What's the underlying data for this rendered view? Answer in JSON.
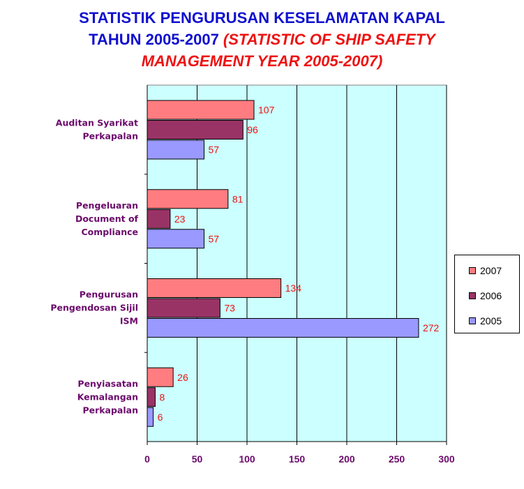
{
  "title": {
    "line1": "STATISTIK PENGURUSAN KESELAMATAN KAPAL",
    "line2_ms": "TAHUN 2005-2007 ",
    "line2_en": "(STATISTIC OF SHIP SAFETY",
    "line3_en": "MANAGEMENT YEAR 2005-2007)"
  },
  "colors": {
    "plot_background": "#ccffff",
    "category_label": "#6b0a6b",
    "data_label": "#ee1111",
    "title_ms": "#1010d0",
    "title_en": "#ee1111"
  },
  "chart_data": {
    "type": "bar",
    "orientation": "horizontal",
    "categories": [
      [
        "Auditan Syarikat",
        "Perkapalan"
      ],
      [
        "Pengeluaran",
        "Document of",
        "Compliance"
      ],
      [
        "Pengurusan",
        "Pengendosan Sijil",
        "ISM"
      ],
      [
        "Penyiasatan",
        "Kemalangan",
        "Perkapalan"
      ]
    ],
    "series": [
      {
        "name": "2007",
        "color": "#ff7c80",
        "values": [
          107,
          81,
          134,
          26
        ]
      },
      {
        "name": "2006",
        "color": "#993366",
        "values": [
          96,
          23,
          73,
          8
        ]
      },
      {
        "name": "2005",
        "color": "#9999ff",
        "values": [
          57,
          57,
          272,
          6
        ]
      }
    ],
    "xlim": [
      0,
      300
    ],
    "xticks": [
      "0",
      "50",
      "100",
      "150",
      "200",
      "250",
      "300"
    ],
    "xtick_values": [
      0,
      50,
      100,
      150,
      200,
      250,
      300
    ],
    "grid": "vertical",
    "legend_position": "right",
    "xlabel": "",
    "ylabel": ""
  }
}
